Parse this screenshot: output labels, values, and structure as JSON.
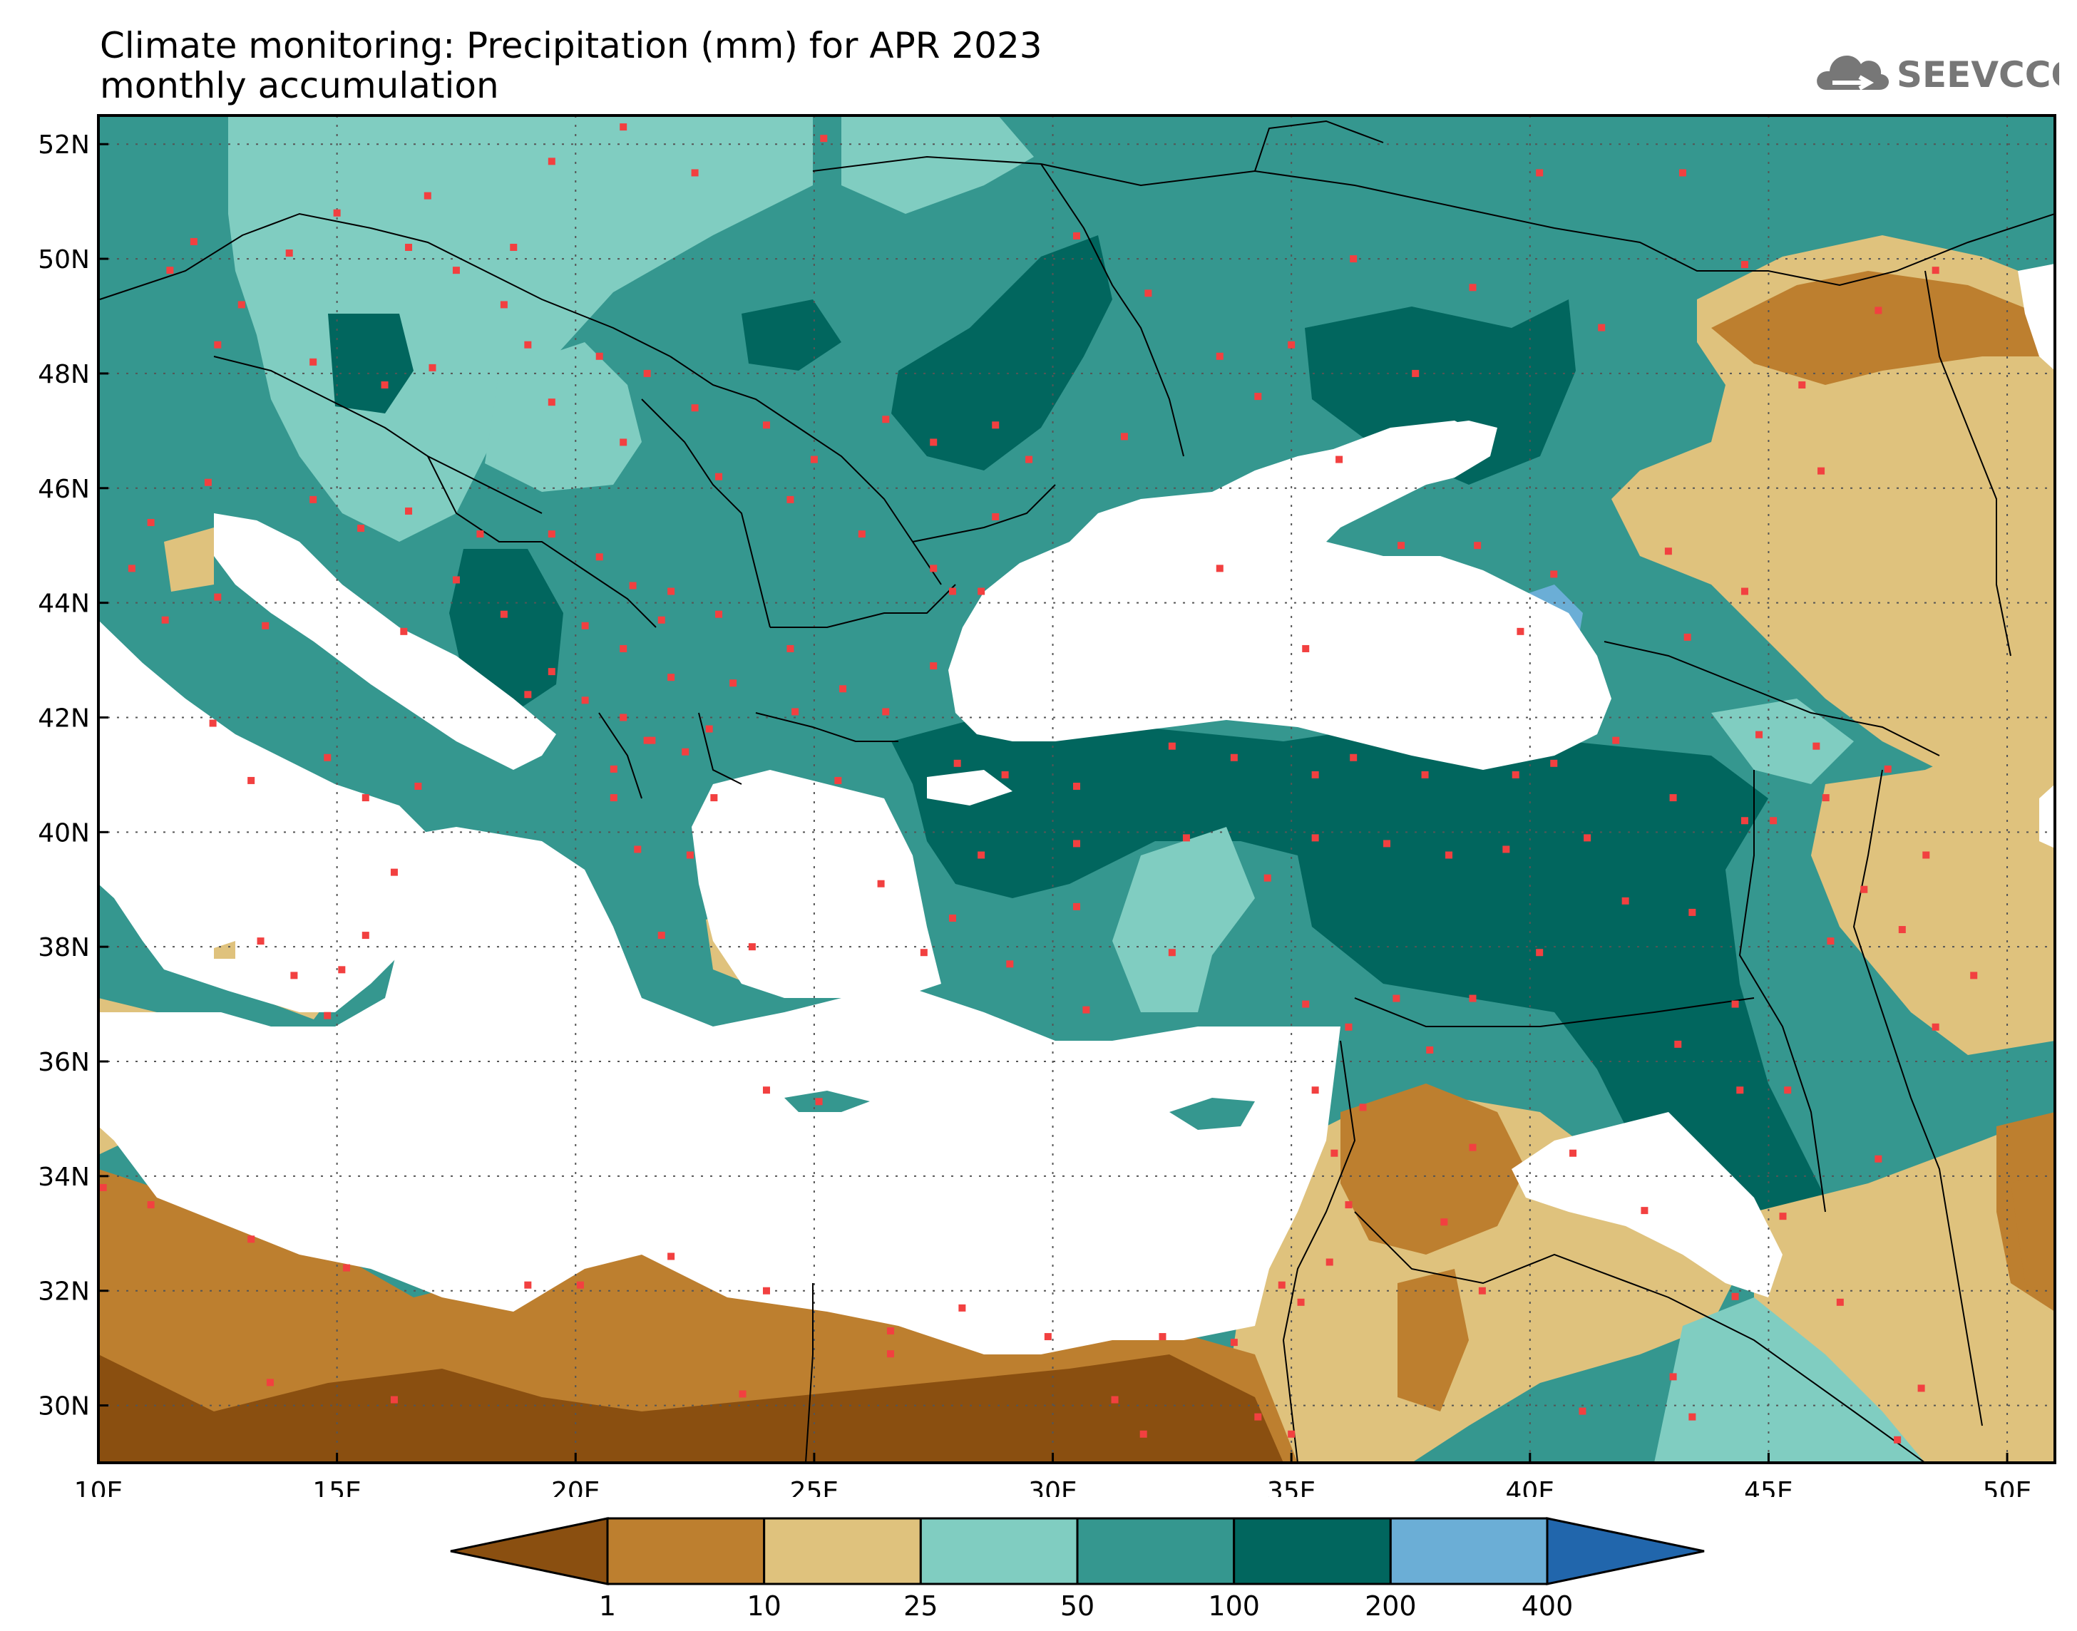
{
  "header": {
    "title_line1": "Climate monitoring: Precipitation (mm) for APR 2023",
    "title_line2": "monthly accumulation",
    "logo_text": "SEEVCCC"
  },
  "map": {
    "lon_range": [
      10,
      51
    ],
    "lat_range": [
      29,
      52.5
    ],
    "x_ticks": [
      {
        "value": 10,
        "label": "10E"
      },
      {
        "value": 15,
        "label": "15E"
      },
      {
        "value": 20,
        "label": "20E"
      },
      {
        "value": 25,
        "label": "25E"
      },
      {
        "value": 30,
        "label": "30E"
      },
      {
        "value": 35,
        "label": "35E"
      },
      {
        "value": 40,
        "label": "40E"
      },
      {
        "value": 45,
        "label": "45E"
      },
      {
        "value": 50,
        "label": "50E"
      }
    ],
    "y_ticks": [
      {
        "value": 52,
        "label": "52N"
      },
      {
        "value": 50,
        "label": "50N"
      },
      {
        "value": 48,
        "label": "48N"
      },
      {
        "value": 46,
        "label": "46N"
      },
      {
        "value": 44,
        "label": "44N"
      },
      {
        "value": 42,
        "label": "42N"
      },
      {
        "value": 40,
        "label": "40N"
      },
      {
        "value": 38,
        "label": "38N"
      },
      {
        "value": 36,
        "label": "36N"
      },
      {
        "value": 34,
        "label": "34N"
      },
      {
        "value": 32,
        "label": "32N"
      },
      {
        "value": 30,
        "label": "30N"
      }
    ],
    "colors": {
      "c0": "#8a4f10",
      "c1": "#bd7f2f",
      "c2": "#dfc27d",
      "c3": "#80cdc1",
      "c4": "#35978f",
      "c5": "#01665e",
      "c6": "#6baed6",
      "c7": "#2166ac",
      "station": "#f24040",
      "sea": "#ffffff",
      "border": "#000000"
    },
    "stations": [
      [
        11.5,
        49.8
      ],
      [
        12,
        50.3
      ],
      [
        13,
        49.2
      ],
      [
        14,
        50.1
      ],
      [
        15,
        50.8
      ],
      [
        16.5,
        50.2
      ],
      [
        17.5,
        49.8
      ],
      [
        18.5,
        49.2
      ],
      [
        12.5,
        48.5
      ],
      [
        14.5,
        48.2
      ],
      [
        16,
        47.8
      ],
      [
        17,
        48.1
      ],
      [
        19,
        48.5
      ],
      [
        20.5,
        48.3
      ],
      [
        21.5,
        48
      ],
      [
        19.5,
        47.5
      ],
      [
        21,
        46.8
      ],
      [
        22.5,
        47.4
      ],
      [
        24,
        47.1
      ],
      [
        25,
        46.5
      ],
      [
        26.5,
        47.2
      ],
      [
        27.5,
        46.8
      ],
      [
        28.8,
        47.1
      ],
      [
        29.5,
        46.5
      ],
      [
        23,
        46.2
      ],
      [
        24.5,
        45.8
      ],
      [
        26,
        45.2
      ],
      [
        27.5,
        44.6
      ],
      [
        28.5,
        44.2
      ],
      [
        22,
        44.2
      ],
      [
        23,
        43.8
      ],
      [
        24.5,
        43.2
      ],
      [
        19.5,
        45.2
      ],
      [
        20.5,
        44.8
      ],
      [
        21.2,
        44.3
      ],
      [
        21.8,
        43.7
      ],
      [
        20.2,
        43.6
      ],
      [
        21,
        43.2
      ],
      [
        22,
        42.7
      ],
      [
        19.5,
        42.8
      ],
      [
        19,
        42.4
      ],
      [
        20.2,
        42.3
      ],
      [
        21,
        42
      ],
      [
        21.6,
        41.6
      ],
      [
        22.3,
        41.4
      ],
      [
        20.8,
        41.1
      ],
      [
        21.5,
        41.6
      ],
      [
        22.8,
        41.8
      ],
      [
        23.3,
        42.6
      ],
      [
        24.6,
        42.1
      ],
      [
        25.6,
        42.5
      ],
      [
        26.5,
        42.1
      ],
      [
        27.5,
        42.9
      ],
      [
        14.5,
        45.8
      ],
      [
        15.5,
        45.3
      ],
      [
        16.5,
        45.6
      ],
      [
        18,
        45.2
      ],
      [
        17.5,
        44.4
      ],
      [
        18.5,
        43.8
      ],
      [
        16.4,
        43.5
      ],
      [
        12.3,
        46.1
      ],
      [
        11.1,
        45.4
      ],
      [
        10.7,
        44.6
      ],
      [
        11.4,
        43.7
      ],
      [
        12.5,
        44.1
      ],
      [
        13.5,
        43.6
      ],
      [
        12.4,
        41.9
      ],
      [
        14.8,
        41.3
      ],
      [
        15.6,
        40.6
      ],
      [
        16.7,
        40.8
      ],
      [
        16.2,
        39.3
      ],
      [
        15.6,
        38.2
      ],
      [
        13.4,
        38.1
      ],
      [
        14.1,
        37.5
      ],
      [
        15.1,
        37.6
      ],
      [
        14.8,
        36.8
      ],
      [
        13.2,
        40.9
      ],
      [
        20.8,
        40.6
      ],
      [
        21.3,
        39.7
      ],
      [
        22.4,
        39.6
      ],
      [
        21.8,
        38.2
      ],
      [
        23.7,
        38
      ],
      [
        22.9,
        40.6
      ],
      [
        25.5,
        40.9
      ],
      [
        26.4,
        39.1
      ],
      [
        25.1,
        35.3
      ],
      [
        24,
        35.5
      ],
      [
        28,
        41.2
      ],
      [
        29,
        41
      ],
      [
        30.5,
        40.8
      ],
      [
        32.5,
        41.5
      ],
      [
        33.8,
        41.3
      ],
      [
        35.5,
        41
      ],
      [
        36.3,
        41.3
      ],
      [
        37.8,
        41
      ],
      [
        39.7,
        41
      ],
      [
        40.5,
        41.2
      ],
      [
        41.8,
        41.6
      ],
      [
        43,
        40.6
      ],
      [
        44.5,
        40.2
      ],
      [
        45.1,
        40.2
      ],
      [
        46.2,
        40.6
      ],
      [
        47.5,
        41.1
      ],
      [
        28.5,
        39.6
      ],
      [
        30.5,
        39.8
      ],
      [
        32.8,
        39.9
      ],
      [
        34.5,
        39.2
      ],
      [
        35.5,
        39.9
      ],
      [
        37,
        39.8
      ],
      [
        38.3,
        39.6
      ],
      [
        39.5,
        39.7
      ],
      [
        41.2,
        39.9
      ],
      [
        42,
        38.8
      ],
      [
        43.4,
        38.6
      ],
      [
        40.2,
        37.9
      ],
      [
        38.8,
        37.1
      ],
      [
        37.2,
        37.1
      ],
      [
        36.2,
        36.6
      ],
      [
        30.7,
        36.9
      ],
      [
        29.1,
        37.7
      ],
      [
        27.3,
        37.9
      ],
      [
        27.9,
        38.5
      ],
      [
        30.5,
        38.7
      ],
      [
        32.5,
        37.9
      ],
      [
        35.3,
        37
      ],
      [
        44.3,
        37
      ],
      [
        43.1,
        36.3
      ],
      [
        44.4,
        35.5
      ],
      [
        45.4,
        35.5
      ],
      [
        47.3,
        34.3
      ],
      [
        48.5,
        36.6
      ],
      [
        49.3,
        37.5
      ],
      [
        47.8,
        38.3
      ],
      [
        46.3,
        38.1
      ],
      [
        48.3,
        39.6
      ],
      [
        47,
        39
      ],
      [
        44.8,
        41.7
      ],
      [
        46,
        41.5
      ],
      [
        36.2,
        33.5
      ],
      [
        35.8,
        32.5
      ],
      [
        36.5,
        35.2
      ],
      [
        35.5,
        35.5
      ],
      [
        35.9,
        34.4
      ],
      [
        34.8,
        32.1
      ],
      [
        35.2,
        31.8
      ],
      [
        37.9,
        36.2
      ],
      [
        38.8,
        34.5
      ],
      [
        38.2,
        33.2
      ],
      [
        40.9,
        34.4
      ],
      [
        39,
        32
      ],
      [
        42.4,
        33.4
      ],
      [
        43,
        30.5
      ],
      [
        44.3,
        31.9
      ],
      [
        45.3,
        33.3
      ],
      [
        46.5,
        31.8
      ],
      [
        41.1,
        29.9
      ],
      [
        47.7,
        29.4
      ],
      [
        48.2,
        30.3
      ],
      [
        43.4,
        29.8
      ],
      [
        10.1,
        33.8
      ],
      [
        11.1,
        33.5
      ],
      [
        13.2,
        32.9
      ],
      [
        15.2,
        32.4
      ],
      [
        19,
        32.1
      ],
      [
        20.1,
        32.1
      ],
      [
        22,
        32.6
      ],
      [
        24,
        32
      ],
      [
        26.6,
        31.3
      ],
      [
        28.1,
        31.7
      ],
      [
        29.9,
        31.2
      ],
      [
        32.3,
        31.2
      ],
      [
        33.8,
        31.1
      ],
      [
        31.3,
        30.1
      ],
      [
        34.3,
        29.8
      ],
      [
        16.2,
        30.1
      ],
      [
        13.6,
        30.4
      ],
      [
        23.5,
        30.2
      ],
      [
        26.6,
        30.9
      ],
      [
        31.9,
        29.5
      ],
      [
        35,
        29.5
      ],
      [
        30.5,
        50.4
      ],
      [
        32,
        49.4
      ],
      [
        33.5,
        48.3
      ],
      [
        35,
        48.5
      ],
      [
        36.3,
        50
      ],
      [
        37.6,
        48
      ],
      [
        38.8,
        49.5
      ],
      [
        40.2,
        51.5
      ],
      [
        41.5,
        48.8
      ],
      [
        43.2,
        51.5
      ],
      [
        44.5,
        49.9
      ],
      [
        45.7,
        47.8
      ],
      [
        47.3,
        49.1
      ],
      [
        48.5,
        49.8
      ],
      [
        46.1,
        46.3
      ],
      [
        44.5,
        44.2
      ],
      [
        43.3,
        43.4
      ],
      [
        42.9,
        44.9
      ],
      [
        40.5,
        44.5
      ],
      [
        39.8,
        43.5
      ],
      [
        38.9,
        45
      ],
      [
        37.3,
        45
      ],
      [
        36,
        46.5
      ],
      [
        34.3,
        47.6
      ],
      [
        31.5,
        46.9
      ],
      [
        28.8,
        45.5
      ],
      [
        27.9,
        44.2
      ],
      [
        33.5,
        44.6
      ],
      [
        35.3,
        43.2
      ],
      [
        25.2,
        52.1
      ],
      [
        22.5,
        51.5
      ],
      [
        21,
        52.3
      ],
      [
        18.7,
        50.2
      ],
      [
        19.5,
        51.7
      ],
      [
        16.9,
        51.1
      ]
    ]
  },
  "colorbar": {
    "tick_labels": [
      "1",
      "10",
      "25",
      "50",
      "100",
      "200",
      "400"
    ],
    "segment_colors": [
      "#bd7f2f",
      "#dfc27d",
      "#80cdc1",
      "#35978f",
      "#01665e",
      "#6baed6"
    ],
    "under_color": "#8a4f10",
    "over_color": "#2166ac"
  }
}
